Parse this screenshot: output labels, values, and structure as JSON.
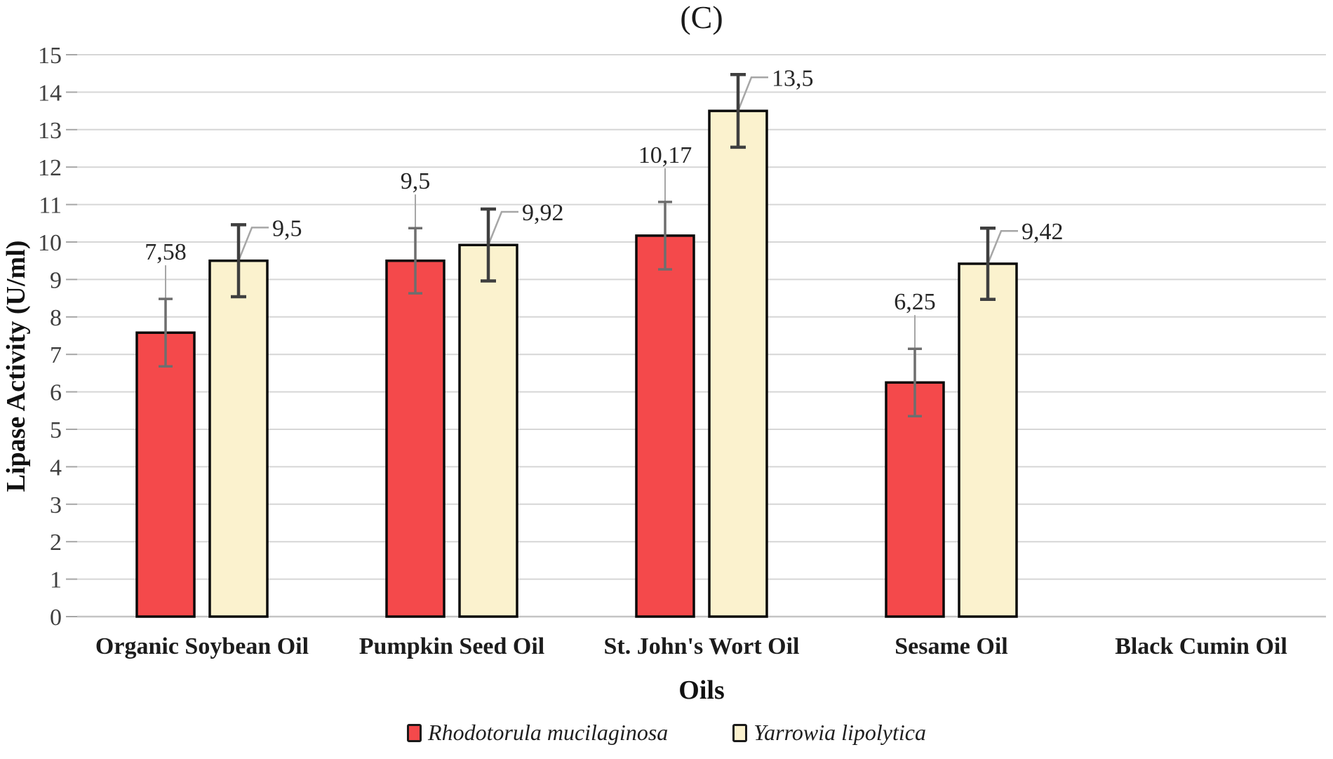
{
  "chart_data": {
    "type": "bar",
    "title": "(C)",
    "xlabel": "Oils",
    "ylabel": "Lipase Activity (U/ml)",
    "ylim": [
      0,
      15
    ],
    "ytick_step": 1,
    "ytick_labels": [
      "0",
      "1",
      "2",
      "3",
      "4",
      "5",
      "6",
      "7",
      "8",
      "9",
      "10",
      "11",
      "12",
      "13",
      "14",
      "15"
    ],
    "grid": true,
    "legend_position": "bottom",
    "decimal_separator": ",",
    "categories": [
      "Organic Soybean Oil",
      "Pumpkin Seed Oil",
      "St. John's Wort Oil",
      "Sesame Oil",
      "Black Cumin Oil"
    ],
    "series": [
      {
        "name": "Rhodotorula mucilaginosa",
        "color": "#f4494b",
        "error_color": "#6e6e6e",
        "label_placement": "above",
        "values": [
          7.58,
          9.5,
          10.17,
          6.25,
          null
        ],
        "errors": [
          0.9,
          0.87,
          0.9,
          0.9,
          null
        ],
        "labels": [
          "7,58",
          "9,5",
          "10,17",
          "6,25",
          ""
        ]
      },
      {
        "name": "Yarrowia lipolytica",
        "color": "#fbf2ce",
        "error_color": "#3f3f3f",
        "label_placement": "callout-right",
        "values": [
          9.5,
          9.92,
          13.5,
          9.42,
          null
        ],
        "errors": [
          0.96,
          0.96,
          0.97,
          0.95,
          null
        ],
        "labels": [
          "9,5",
          "9,92",
          "13,5",
          "9,42",
          ""
        ]
      }
    ],
    "colors": {
      "bar_stroke": "#0a0a0a",
      "gridline": "#d6d6d6",
      "axis_line": "#c4c4c4",
      "tick": "#a6a6a6",
      "leader": "#a6a6a6",
      "tick_text": "#3f3f3f",
      "label_text": "#262626"
    }
  }
}
